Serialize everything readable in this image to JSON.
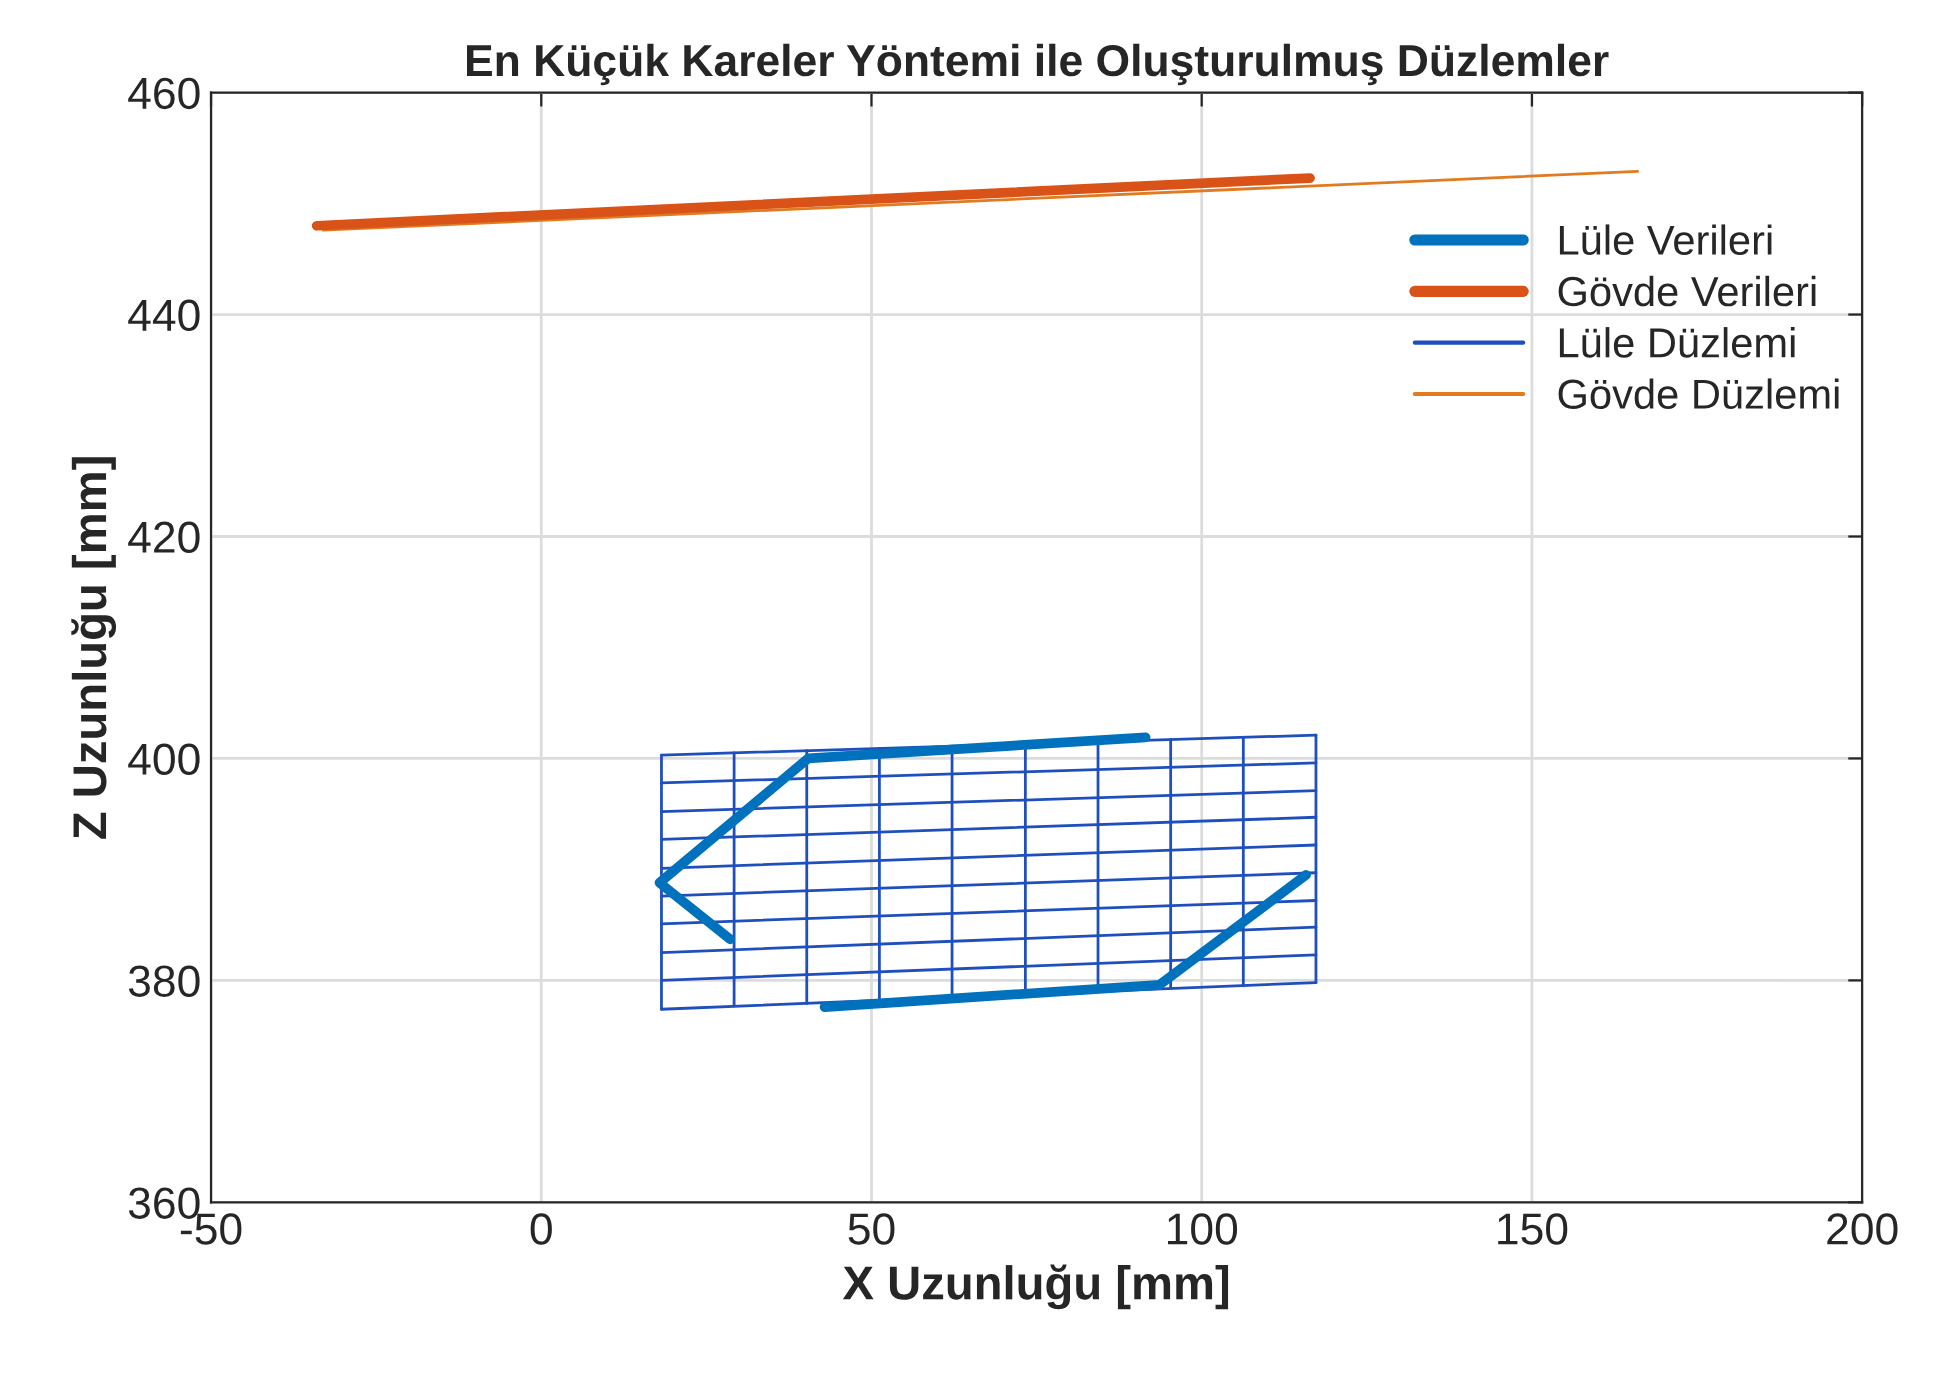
{
  "chart_data": {
    "type": "line",
    "title": "En Küçük Kareler Yöntemi ile Oluşturulmuş Düzlemler",
    "xlabel": "X Uzunluğu [mm]",
    "ylabel": "Z Uzunluğu [mm]",
    "xlim": [
      -50,
      200
    ],
    "xticks": [
      -50,
      0,
      50,
      100,
      150,
      200
    ],
    "ylim": [
      360,
      460
    ],
    "yticks": [
      360,
      380,
      400,
      420,
      440,
      460
    ],
    "grid": true,
    "legend": "top right",
    "series": [
      {
        "name": "Lüle Verileri",
        "color": "#0072bd",
        "x": [
          91.5,
          40.4,
          17.9,
          28.6,
          null,
          42.9,
          93.6,
          115.8
        ],
        "values": [
          401.9,
          400.0,
          388.8,
          383.7,
          null,
          377.6,
          379.6,
          389.5
        ]
      },
      {
        "name": "Gövde Verileri",
        "color": "#d95319",
        "x": [
          -34,
          116.4
        ],
        "values": [
          448.0,
          452.3
        ]
      },
      {
        "name": "Lüle Düzlemi",
        "color": "#1f4fbf",
        "x": [
          18.2,
          117.3
        ],
        "values": [
          400.3,
          402.1
        ]
      },
      {
        "color": "#1f4fbf",
        "x": [
          18.2,
          117.3
        ],
        "values": [
          397.8,
          399.6
        ]
      },
      {
        "color": "#1f4fbf",
        "x": [
          18.2,
          117.3
        ],
        "values": [
          395.2,
          397.1
        ]
      },
      {
        "color": "#1f4fbf",
        "x": [
          18.2,
          117.3
        ],
        "values": [
          392.7,
          394.7
        ]
      },
      {
        "color": "#1f4fbf",
        "x": [
          18.2,
          117.3
        ],
        "values": [
          390.1,
          392.2
        ]
      },
      {
        "color": "#1f4fbf",
        "x": [
          18.2,
          117.3
        ],
        "values": [
          387.6,
          389.7
        ]
      },
      {
        "color": "#1f4fbf",
        "x": [
          18.2,
          117.3
        ],
        "values": [
          385.1,
          387.2
        ]
      },
      {
        "color": "#1f4fbf",
        "x": [
          18.2,
          117.3
        ],
        "values": [
          382.5,
          384.8
        ]
      },
      {
        "color": "#1f4fbf",
        "x": [
          18.2,
          117.3
        ],
        "values": [
          380.0,
          382.3
        ]
      },
      {
        "color": "#1f4fbf",
        "x": [
          18.2,
          117.3
        ],
        "values": [
          377.4,
          379.8
        ]
      },
      {
        "color": "#1f4fbf",
        "x": [
          18.2,
          18.2
        ],
        "values": [
          377.4,
          400.3
        ]
      },
      {
        "color": "#1f4fbf",
        "x": [
          29.2,
          29.2
        ],
        "values": [
          377.7,
          400.5
        ]
      },
      {
        "color": "#1f4fbf",
        "x": [
          40.2,
          40.2
        ],
        "values": [
          377.9,
          400.7
        ]
      },
      {
        "color": "#1f4fbf",
        "x": [
          51.2,
          51.2
        ],
        "values": [
          378.2,
          400.9
        ]
      },
      {
        "color": "#1f4fbf",
        "x": [
          62.2,
          62.2
        ],
        "values": [
          378.5,
          401.1
        ]
      },
      {
        "color": "#1f4fbf",
        "x": [
          73.3,
          73.3
        ],
        "values": [
          378.7,
          401.3
        ]
      },
      {
        "color": "#1f4fbf",
        "x": [
          84.3,
          84.3
        ],
        "values": [
          379.0,
          401.5
        ]
      },
      {
        "color": "#1f4fbf",
        "x": [
          95.3,
          95.3
        ],
        "values": [
          379.3,
          401.7
        ]
      },
      {
        "color": "#1f4fbf",
        "x": [
          106.3,
          106.3
        ],
        "values": [
          379.5,
          401.9
        ]
      },
      {
        "color": "#1f4fbf",
        "x": [
          117.3,
          117.3
        ],
        "values": [
          379.8,
          402.1
        ]
      },
      {
        "name": "Gövde Düzlemi",
        "color": "#e07b20",
        "x": [
          -33,
          166
        ],
        "values": [
          447.6,
          452.9
        ]
      }
    ]
  }
}
